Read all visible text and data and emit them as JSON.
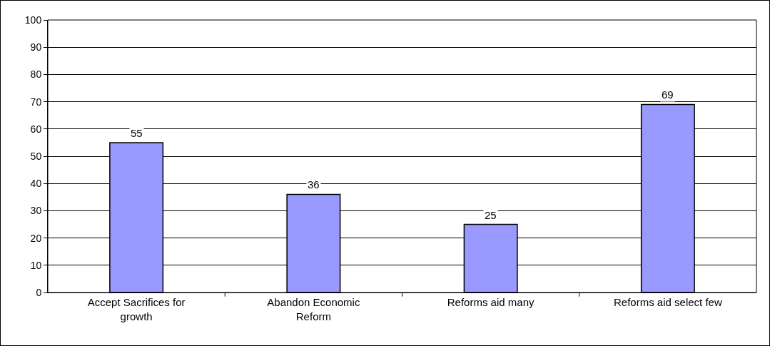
{
  "chart_data": {
    "type": "bar",
    "categories": [
      "Accept Sacrifices for growth",
      "Abandon Economic Reform",
      "Reforms aid many",
      "Reforms aid select few"
    ],
    "values": [
      55,
      36,
      25,
      69
    ],
    "color": "#9999ff",
    "data_labels": true,
    "ylim": [
      0,
      100
    ],
    "yticks": [
      0,
      10,
      20,
      30,
      40,
      50,
      60,
      70,
      80,
      90,
      100
    ],
    "grid": "y"
  }
}
